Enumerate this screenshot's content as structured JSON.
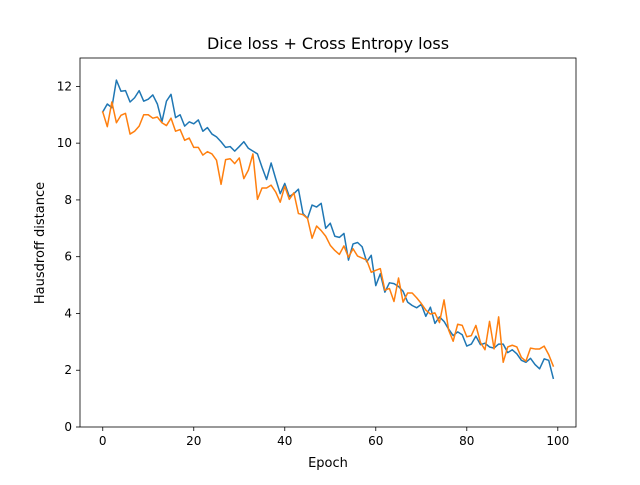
{
  "chart_data": {
    "type": "line",
    "title": "Dice loss + Cross Entropy loss",
    "xlabel": "Epoch",
    "ylabel": "Hausdroff distance",
    "xlim": [
      -5,
      104
    ],
    "ylim": [
      0,
      13
    ],
    "xticks": [
      0,
      20,
      40,
      60,
      80,
      100
    ],
    "yticks": [
      0,
      2,
      4,
      6,
      8,
      10,
      12
    ],
    "grid": false,
    "series": [
      {
        "color": "#1f77b4",
        "x": [
          0,
          1,
          2,
          3,
          4,
          5,
          6,
          7,
          8,
          9,
          10,
          11,
          12,
          13,
          14,
          15,
          16,
          17,
          18,
          19,
          20,
          21,
          22,
          23,
          24,
          25,
          26,
          27,
          28,
          29,
          30,
          31,
          32,
          33,
          34,
          35,
          36,
          37,
          38,
          39,
          40,
          41,
          42,
          43,
          44,
          45,
          46,
          47,
          48,
          49,
          50,
          51,
          52,
          53,
          54,
          55,
          56,
          57,
          58,
          59,
          60,
          61,
          62,
          63,
          64,
          65,
          66,
          67,
          68,
          69,
          70,
          71,
          72,
          73,
          74,
          75,
          76,
          77,
          78,
          79,
          80,
          81,
          82,
          83,
          84,
          85,
          86,
          87,
          88,
          89,
          90,
          91,
          92,
          93,
          94,
          95,
          96,
          97,
          98,
          99
        ],
        "values": [
          11.1,
          11.38,
          11.25,
          12.22,
          11.83,
          11.85,
          11.45,
          11.6,
          11.85,
          11.48,
          11.55,
          11.7,
          11.38,
          10.75,
          11.48,
          11.72,
          10.9,
          11.0,
          10.6,
          10.75,
          10.68,
          10.82,
          10.42,
          10.55,
          10.32,
          10.22,
          10.05,
          9.85,
          9.88,
          9.72,
          9.88,
          10.05,
          9.82,
          9.72,
          9.62,
          9.15,
          8.72,
          9.3,
          8.75,
          8.22,
          8.58,
          8.12,
          8.22,
          8.38,
          7.52,
          7.35,
          7.82,
          7.75,
          7.88,
          7.0,
          7.18,
          6.72,
          6.68,
          6.82,
          5.88,
          6.45,
          6.5,
          6.35,
          5.82,
          6.05,
          4.98,
          5.4,
          4.75,
          5.08,
          5.05,
          4.95,
          4.78,
          4.4,
          4.28,
          4.2,
          4.32,
          3.9,
          4.22,
          3.65,
          3.88,
          3.72,
          3.45,
          3.22,
          3.35,
          3.25,
          2.85,
          2.92,
          3.2,
          2.9,
          2.95,
          2.82,
          2.78,
          2.92,
          2.92,
          2.62,
          2.72,
          2.58,
          2.35,
          2.28,
          2.42,
          2.2,
          2.05,
          2.4,
          2.35,
          1.72
        ]
      },
      {
        "color": "#ff7f0e",
        "x": [
          0,
          1,
          2,
          3,
          4,
          5,
          6,
          7,
          8,
          9,
          10,
          11,
          12,
          13,
          14,
          15,
          16,
          17,
          18,
          19,
          20,
          21,
          22,
          23,
          24,
          25,
          26,
          27,
          28,
          29,
          30,
          31,
          32,
          33,
          34,
          35,
          36,
          37,
          38,
          39,
          40,
          41,
          42,
          43,
          44,
          45,
          46,
          47,
          48,
          49,
          50,
          51,
          52,
          53,
          54,
          55,
          56,
          57,
          58,
          59,
          60,
          61,
          62,
          63,
          64,
          65,
          66,
          67,
          68,
          69,
          70,
          71,
          72,
          73,
          74,
          75,
          76,
          77,
          78,
          79,
          80,
          81,
          82,
          83,
          84,
          85,
          86,
          87,
          88,
          89,
          90,
          91,
          92,
          93,
          94,
          95,
          96,
          97,
          98,
          99
        ],
        "values": [
          11.1,
          10.58,
          11.45,
          10.72,
          10.98,
          11.05,
          10.32,
          10.42,
          10.6,
          11.0,
          11.0,
          10.88,
          10.92,
          10.72,
          10.62,
          10.88,
          10.42,
          10.48,
          10.1,
          10.18,
          9.85,
          9.85,
          9.58,
          9.7,
          9.62,
          9.4,
          8.55,
          9.42,
          9.45,
          9.28,
          9.48,
          8.75,
          9.05,
          9.62,
          8.02,
          8.42,
          8.42,
          8.52,
          8.28,
          7.92,
          8.48,
          8.02,
          8.25,
          7.52,
          7.48,
          7.35,
          6.65,
          7.08,
          6.92,
          6.72,
          6.4,
          6.22,
          6.08,
          6.38,
          5.98,
          6.28,
          6.02,
          5.95,
          5.88,
          5.45,
          5.52,
          5.58,
          4.82,
          4.88,
          4.42,
          5.25,
          4.4,
          4.72,
          4.72,
          4.55,
          4.35,
          4.12,
          3.98,
          4.02,
          3.68,
          4.48,
          3.42,
          3.02,
          3.62,
          3.58,
          3.18,
          3.22,
          3.58,
          2.98,
          2.72,
          3.72,
          2.75,
          3.88,
          2.28,
          2.82,
          2.88,
          2.82,
          2.45,
          2.32,
          2.78,
          2.75,
          2.75,
          2.85,
          2.55,
          2.15
        ]
      }
    ]
  }
}
